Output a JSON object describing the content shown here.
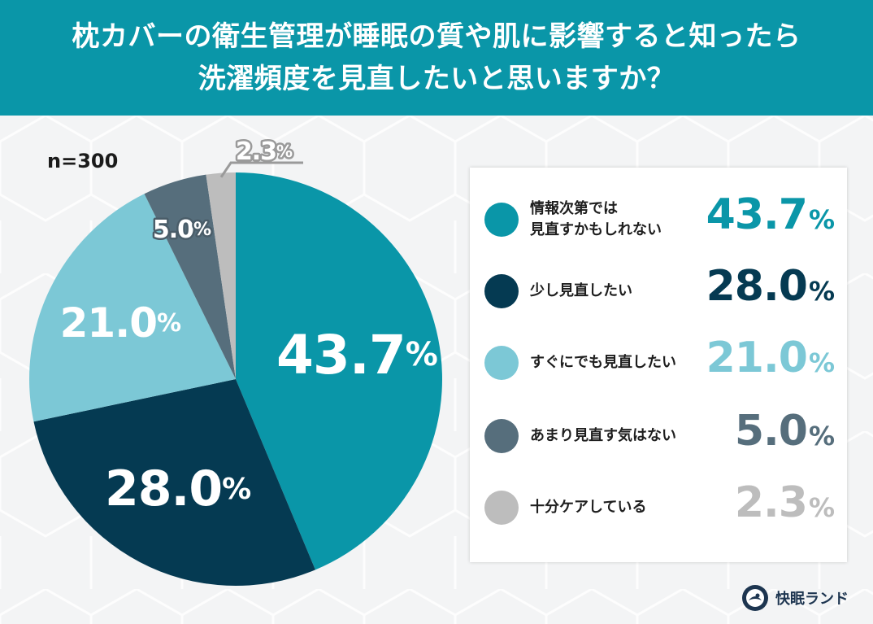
{
  "header": {
    "title_line1": "枕カバーの衛生管理が睡眠の質や肌に影響すると知ったら",
    "title_line2": "洗濯頻度を見直したいと思いますか？"
  },
  "sample_size": "n=300",
  "brand": {
    "name": "快眠ランド"
  },
  "colors": {
    "header_bg": "#0a96a8",
    "series": [
      "#0a96a8",
      "#053a52",
      "#7cc8d6",
      "#566e7c",
      "#bdbdbd"
    ]
  },
  "chart_data": {
    "type": "pie",
    "unit": "%",
    "slices": [
      {
        "label": "情報次第では\n見直すかもしれない",
        "value": 43.7,
        "display": "43.7"
      },
      {
        "label": "少し見直したい",
        "value": 28.0,
        "display": "28.0"
      },
      {
        "label": "すぐにでも見直したい",
        "value": 21.0,
        "display": "21.0"
      },
      {
        "label": "あまり見直す気はない",
        "value": 5.0,
        "display": "5.0"
      },
      {
        "label": "十分ケアしている",
        "value": 2.3,
        "display": "2.3"
      }
    ]
  }
}
